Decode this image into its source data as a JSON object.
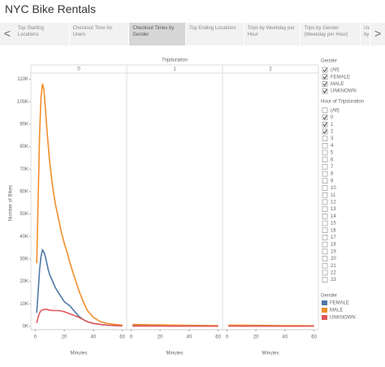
{
  "header": {
    "title": "NYC Bike Rentals"
  },
  "tabs": {
    "prev": "<",
    "next": ">",
    "items": [
      "Top Starting Locations",
      "Checkout Time for Users",
      "Checkout Times by Gender",
      "Top Ending Locations",
      "Trips by Weekday per Hour",
      "Trips by Gender (Weekday per Hour)",
      "Us by"
    ],
    "selected": 2
  },
  "chart_data": {
    "type": "line",
    "panel_title": "Tripduration",
    "panels": [
      "0",
      "1",
      "2"
    ],
    "x_label": "Minutes",
    "y_label": "Number of Bikes",
    "x": [
      1,
      2,
      3,
      4,
      5,
      6,
      7,
      8,
      9,
      10,
      12,
      14,
      16,
      18,
      20,
      22,
      24,
      26,
      28,
      30,
      33,
      36,
      40,
      45,
      50,
      55,
      60
    ],
    "xlim": [
      -3,
      63
    ],
    "xticks": [
      0,
      20,
      40,
      60
    ],
    "ylim": [
      -1500,
      112000
    ],
    "yticks": [
      {
        "value": 0,
        "label": "0K"
      },
      {
        "value": 10000,
        "label": "10K"
      },
      {
        "value": 20000,
        "label": "20K"
      },
      {
        "value": 30000,
        "label": "30K"
      },
      {
        "value": 40000,
        "label": "40K"
      },
      {
        "value": 50000,
        "label": "50K"
      },
      {
        "value": 60000,
        "label": "60K"
      },
      {
        "value": 70000,
        "label": "70K"
      },
      {
        "value": 80000,
        "label": "80K"
      },
      {
        "value": 90000,
        "label": "90K"
      },
      {
        "value": 100000,
        "label": "100K"
      },
      {
        "value": 110000,
        "label": "110K"
      }
    ],
    "legend_title": "Gender",
    "series": [
      {
        "name": "FEMALE",
        "color": "#4e79a7",
        "values": [
          [
            6000,
            15000,
            25000,
            31000,
            34000,
            33000,
            31000,
            28000,
            25000,
            23000,
            20000,
            17000,
            15000,
            13000,
            11000,
            10000,
            9000,
            7500,
            6000,
            4500,
            3000,
            2000,
            1200,
            800,
            500,
            300,
            200
          ],
          [
            300,
            300,
            300,
            290,
            290,
            280,
            280,
            270,
            270,
            260,
            250,
            240,
            230,
            220,
            210,
            200,
            190,
            180,
            170,
            160,
            150,
            140,
            130,
            120,
            110,
            100,
            100
          ],
          [
            200,
            200,
            200,
            190,
            190,
            190,
            180,
            180,
            180,
            170,
            170,
            160,
            160,
            150,
            150,
            140,
            140,
            130,
            130,
            120,
            120,
            110,
            110,
            100,
            100,
            90,
            90
          ]
        ]
      },
      {
        "name": "MALE",
        "color": "#f28e2b",
        "values": [
          [
            28000,
            55000,
            85000,
            102000,
            108000,
            105000,
            97000,
            88000,
            80000,
            73000,
            62000,
            54000,
            48000,
            42000,
            37000,
            33000,
            28000,
            24000,
            20000,
            16000,
            11000,
            7000,
            4000,
            2000,
            1200,
            800,
            500
          ],
          [
            800,
            800,
            790,
            780,
            770,
            760,
            750,
            740,
            730,
            720,
            700,
            680,
            660,
            640,
            620,
            600,
            580,
            560,
            540,
            520,
            490,
            460,
            420,
            380,
            340,
            310,
            280
          ],
          [
            500,
            500,
            490,
            490,
            480,
            480,
            470,
            470,
            460,
            460,
            450,
            440,
            430,
            420,
            410,
            400,
            390,
            380,
            370,
            360,
            340,
            320,
            300,
            280,
            260,
            240,
            220
          ]
        ]
      },
      {
        "name": "UNKNOWN",
        "color": "#e15759",
        "values": [
          [
            1500,
            4000,
            6000,
            7000,
            7300,
            7500,
            7500,
            7500,
            7300,
            7200,
            7000,
            7000,
            7000,
            6800,
            6500,
            6000,
            5500,
            5000,
            4500,
            4000,
            3000,
            2000,
            1300,
            800,
            500,
            300,
            200
          ],
          [
            100,
            100,
            100,
            100,
            100,
            100,
            90,
            90,
            90,
            90,
            90,
            80,
            80,
            80,
            80,
            80,
            70,
            70,
            70,
            70,
            60,
            60,
            60,
            50,
            50,
            50,
            50
          ],
          [
            80,
            80,
            80,
            80,
            80,
            70,
            70,
            70,
            70,
            70,
            70,
            60,
            60,
            60,
            60,
            60,
            60,
            50,
            50,
            50,
            50,
            50,
            40,
            40,
            40,
            40,
            40
          ]
        ]
      }
    ]
  },
  "filters": [
    {
      "title": "Gender",
      "items": [
        {
          "label": "(All)",
          "checked": true
        },
        {
          "label": "FEMALE",
          "checked": true
        },
        {
          "label": "MALE",
          "checked": true
        },
        {
          "label": "UNKNOWN",
          "checked": true
        }
      ]
    },
    {
      "title": "Hour of Tripduration",
      "items": [
        {
          "label": "(All)",
          "checked": false
        },
        {
          "label": "0",
          "checked": true
        },
        {
          "label": "1",
          "checked": true
        },
        {
          "label": "2",
          "checked": true
        },
        {
          "label": "3",
          "checked": false
        },
        {
          "label": "4",
          "checked": false
        },
        {
          "label": "5",
          "checked": false
        },
        {
          "label": "6",
          "checked": false
        },
        {
          "label": "7",
          "checked": false
        },
        {
          "label": "8",
          "checked": false
        },
        {
          "label": "9",
          "checked": false
        },
        {
          "label": "10",
          "checked": false
        },
        {
          "label": "11",
          "checked": false
        },
        {
          "label": "12",
          "checked": false
        },
        {
          "label": "13",
          "checked": false
        },
        {
          "label": "14",
          "checked": false
        },
        {
          "label": "15",
          "checked": false
        },
        {
          "label": "16",
          "checked": false
        },
        {
          "label": "17",
          "checked": false
        },
        {
          "label": "18",
          "checked": false
        },
        {
          "label": "19",
          "checked": false
        },
        {
          "label": "20",
          "checked": false
        },
        {
          "label": "21",
          "checked": false
        },
        {
          "label": "22",
          "checked": false
        },
        {
          "label": "23",
          "checked": false
        }
      ]
    }
  ]
}
